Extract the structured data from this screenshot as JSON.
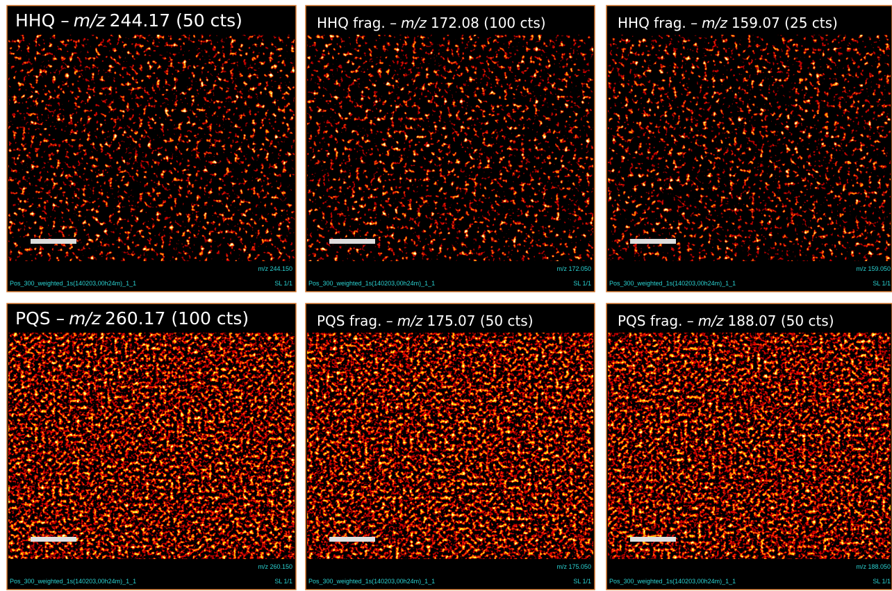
{
  "panels": [
    {
      "title_prefix": "HHQ –",
      "title_italic": "m/z",
      "title_suffix": "244.17 (50 cts)",
      "mz_label": "m/z 244.150",
      "file": "Pos_300_weighted_1s(140203,00h24m)_1_1",
      "slice": "SL 1/1"
    },
    {
      "title_prefix": "HHQ frag. –",
      "title_italic": "m/z",
      "title_suffix": "172.08 (100 cts)",
      "mz_label": "m/z 172.050",
      "file": "Pos_300_weighted_1s(140203,00h24m)_1_1",
      "slice": "SL 1/1"
    },
    {
      "title_prefix": "HHQ frag. –",
      "title_italic": "m/z",
      "title_suffix": "159.07 (25 cts)",
      "mz_label": "m/z 159.050",
      "file": "Pos_300_weighted_1s(140203,00h24m)_1_1",
      "slice": "SL 1/1"
    },
    {
      "title_prefix": "PQS –",
      "title_italic": "m/z",
      "title_suffix": "260.17 (100 cts)",
      "mz_label": "m/z 260.150",
      "file": "Pos_300_weighted_1s(140203,00h24m)_1_1",
      "slice": "SL 1/1"
    },
    {
      "title_prefix": "PQS frag. –",
      "title_italic": "m/z",
      "title_suffix": "175.07 (50 cts)",
      "mz_label": "m/z 175.050",
      "file": "Pos_300_weighted_1s(140203,00h24m)_1_1",
      "slice": "SL 1/1"
    },
    {
      "title_prefix": "PQS frag. –",
      "title_italic": "m/z",
      "title_suffix": "188.07 (50 cts)",
      "mz_label": "m/z 188.050",
      "file": "Pos_300_weighted_1s(140203,00h24m)_1_1",
      "slice": "SL 1/1"
    }
  ]
}
